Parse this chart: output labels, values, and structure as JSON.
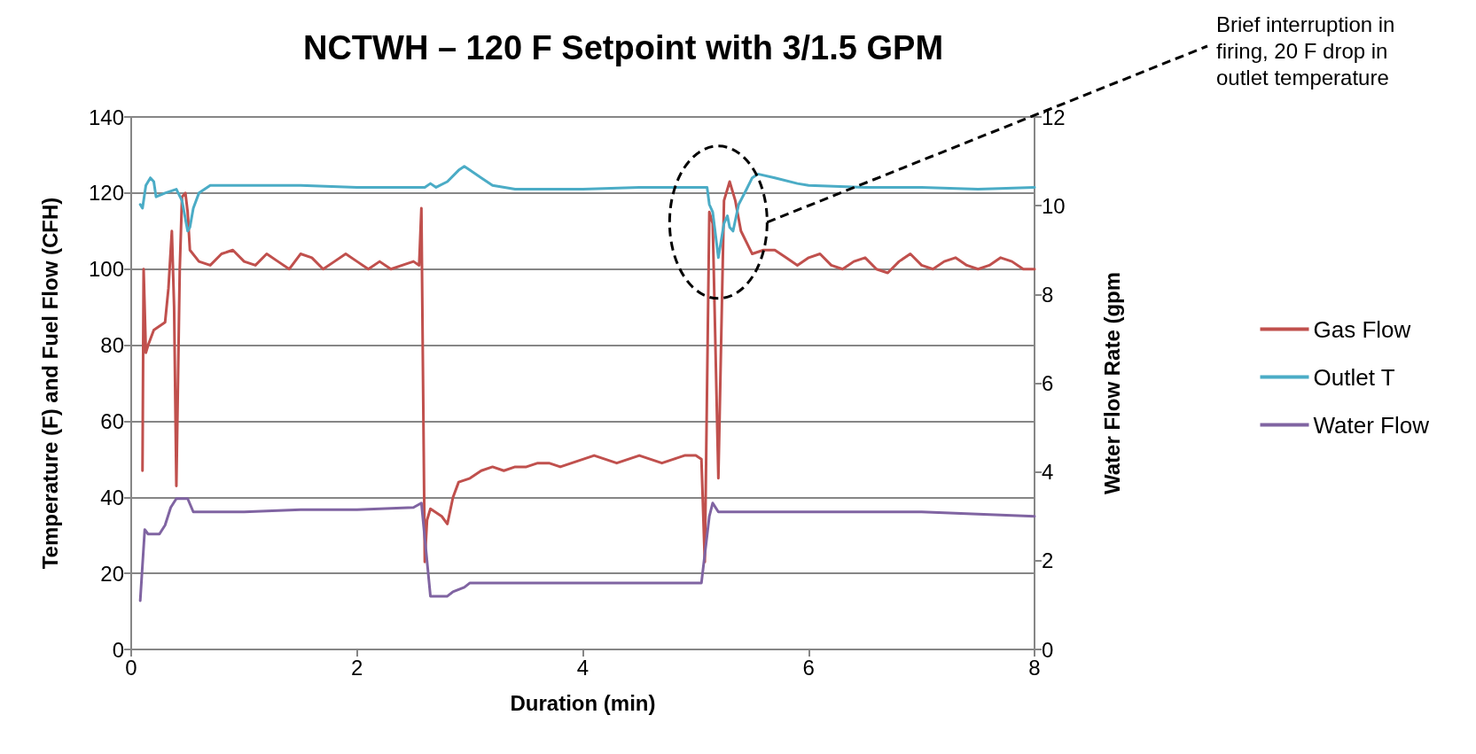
{
  "chart_data": {
    "type": "line",
    "title": "NCTWH – 120 F Setpoint with 3/1.5 GPM",
    "xlabel": "Duration (min)",
    "ylabel": "Temperature (F) and Fuel Flow (CFH)",
    "y2label": "Water Flow Rate (gpm",
    "xlim": [
      0,
      8
    ],
    "xticks": [
      0,
      2,
      4,
      6,
      8
    ],
    "ylim": [
      0,
      140
    ],
    "yticks": [
      0,
      20,
      40,
      60,
      80,
      100,
      120,
      140
    ],
    "y2lim": [
      0,
      12
    ],
    "y2ticks": [
      0,
      2,
      4,
      6,
      8,
      10,
      12
    ],
    "grid": "y",
    "legend": "right",
    "marker": "none",
    "line_style": "solid",
    "annotations": [
      "Brief interruption in firing, 20 F drop in outlet temperature"
    ],
    "series": [
      {
        "name": "Gas Flow",
        "color": "#c0504d",
        "x": [
          0.1,
          0.11,
          0.13,
          0.15,
          0.2,
          0.3,
          0.33,
          0.36,
          0.38,
          0.4,
          0.43,
          0.45,
          0.48,
          0.5,
          0.52,
          0.6,
          0.7,
          0.8,
          0.9,
          1.0,
          1.1,
          1.2,
          1.3,
          1.4,
          1.5,
          1.6,
          1.7,
          1.8,
          1.9,
          2.0,
          2.1,
          2.2,
          2.3,
          2.4,
          2.5,
          2.55,
          2.57,
          2.6,
          2.62,
          2.65,
          2.75,
          2.8,
          2.85,
          2.9,
          3.0,
          3.1,
          3.2,
          3.3,
          3.4,
          3.5,
          3.6,
          3.7,
          3.8,
          3.9,
          4.0,
          4.1,
          4.2,
          4.3,
          4.4,
          4.5,
          4.6,
          4.7,
          4.8,
          4.9,
          5.0,
          5.05,
          5.08,
          5.12,
          5.15,
          5.2,
          5.25,
          5.3,
          5.35,
          5.4,
          5.5,
          5.6,
          5.7,
          5.8,
          5.9,
          6.0,
          6.1,
          6.2,
          6.3,
          6.4,
          6.5,
          6.6,
          6.7,
          6.8,
          6.9,
          7.0,
          7.1,
          7.2,
          7.3,
          7.4,
          7.5,
          7.6,
          7.7,
          7.8,
          7.9,
          8.0
        ],
        "values": [
          47,
          100,
          78,
          80,
          84,
          86,
          95,
          110,
          90,
          43,
          100,
          119,
          120,
          115,
          105,
          102,
          101,
          104,
          105,
          102,
          101,
          104,
          102,
          100,
          104,
          103,
          100,
          102,
          104,
          102,
          100,
          102,
          100,
          101,
          102,
          101,
          116,
          23,
          34,
          37,
          35,
          33,
          40,
          44,
          45,
          47,
          48,
          47,
          48,
          48,
          49,
          49,
          48,
          49,
          50,
          51,
          50,
          49,
          50,
          51,
          50,
          49,
          50,
          51,
          51,
          50,
          23,
          115,
          112,
          45,
          118,
          123,
          118,
          110,
          104,
          105,
          105,
          103,
          101,
          103,
          104,
          101,
          100,
          102,
          103,
          100,
          99,
          102,
          104,
          101,
          100,
          102,
          103,
          101,
          100,
          101,
          103,
          102,
          100,
          100
        ]
      },
      {
        "name": "Outlet T",
        "color": "#4bacc6",
        "x": [
          0.08,
          0.1,
          0.13,
          0.17,
          0.2,
          0.22,
          0.3,
          0.4,
          0.45,
          0.5,
          0.52,
          0.55,
          0.6,
          0.7,
          1.0,
          1.5,
          2.0,
          2.5,
          2.6,
          2.65,
          2.7,
          2.8,
          2.9,
          2.95,
          3.0,
          3.1,
          3.2,
          3.4,
          3.6,
          4.0,
          4.5,
          5.0,
          5.1,
          5.12,
          5.15,
          5.2,
          5.25,
          5.28,
          5.3,
          5.33,
          5.38,
          5.45,
          5.5,
          5.55,
          5.7,
          5.9,
          6.0,
          6.5,
          7.0,
          7.5,
          8.0
        ],
        "values": [
          117,
          116,
          122,
          124,
          123,
          119,
          120,
          121,
          118,
          110,
          111,
          116,
          120,
          122,
          122,
          122,
          121.5,
          121.5,
          121.5,
          122.5,
          121.5,
          123,
          126,
          127,
          126,
          124,
          122,
          121,
          121,
          121,
          121.5,
          121.5,
          121.5,
          117,
          115,
          103,
          112,
          114,
          111,
          110,
          117,
          121,
          124,
          125,
          124,
          122.5,
          122,
          121.5,
          121.5,
          121,
          121.5
        ]
      },
      {
        "name": "Water Flow",
        "color": "#8064a2",
        "axis": "y2",
        "x": [
          0.08,
          0.12,
          0.15,
          0.25,
          0.3,
          0.35,
          0.4,
          0.5,
          0.55,
          1.0,
          1.5,
          2.0,
          2.5,
          2.57,
          2.65,
          2.8,
          2.85,
          2.95,
          3.0,
          5.05,
          5.12,
          5.15,
          5.2,
          6.0,
          7.0,
          8.0
        ],
        "values": [
          1.1,
          2.7,
          2.6,
          2.6,
          2.8,
          3.2,
          3.4,
          3.4,
          3.1,
          3.1,
          3.15,
          3.15,
          3.2,
          3.3,
          1.2,
          1.2,
          1.3,
          1.4,
          1.5,
          1.5,
          3.0,
          3.3,
          3.1,
          3.1,
          3.1,
          3.0
        ]
      }
    ]
  }
}
